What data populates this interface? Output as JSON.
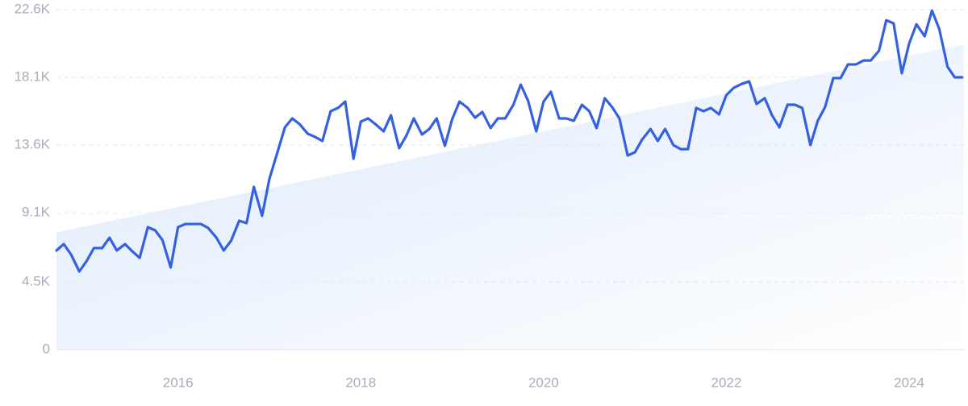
{
  "chart_data": {
    "type": "line",
    "x": [
      2014.67,
      2014.75,
      2014.83,
      2014.92,
      2015,
      2015.08,
      2015.17,
      2015.25,
      2015.33,
      2015.42,
      2015.5,
      2015.58,
      2015.67,
      2015.75,
      2015.83,
      2015.92,
      2016,
      2016.08,
      2016.17,
      2016.25,
      2016.33,
      2016.42,
      2016.5,
      2016.58,
      2016.67,
      2016.75,
      2016.83,
      2016.92,
      2017,
      2017.08,
      2017.17,
      2017.25,
      2017.33,
      2017.42,
      2017.5,
      2017.58,
      2017.67,
      2017.75,
      2017.83,
      2017.92,
      2018,
      2018.08,
      2018.17,
      2018.25,
      2018.33,
      2018.42,
      2018.5,
      2018.58,
      2018.67,
      2018.75,
      2018.83,
      2018.92,
      2019,
      2019.08,
      2019.17,
      2019.25,
      2019.33,
      2019.42,
      2019.5,
      2019.58,
      2019.67,
      2019.75,
      2019.83,
      2019.92,
      2020,
      2020.08,
      2020.17,
      2020.25,
      2020.33,
      2020.42,
      2020.5,
      2020.58,
      2020.67,
      2020.75,
      2020.83,
      2020.92,
      2021,
      2021.08,
      2021.17,
      2021.25,
      2021.33,
      2021.42,
      2021.5,
      2021.58,
      2021.67,
      2021.75,
      2021.83,
      2021.92,
      2022,
      2022.08,
      2022.17,
      2022.25,
      2022.33,
      2022.42,
      2022.5,
      2022.58,
      2022.67,
      2022.75,
      2022.83,
      2022.92,
      2023,
      2023.08,
      2023.17,
      2023.25,
      2023.33,
      2023.42,
      2023.5,
      2023.58,
      2023.67,
      2023.75,
      2023.83,
      2023.92,
      2024,
      2024.08,
      2024.17,
      2024.25,
      2024.33,
      2024.42,
      2024.5,
      2024.58
    ],
    "series": [
      {
        "color": "#3560e0",
        "values": [
          6590,
          7015,
          6320,
          5195,
          5890,
          6750,
          6750,
          7440,
          6590,
          7015,
          6530,
          6100,
          8140,
          7925,
          7280,
          5460,
          8140,
          8350,
          8350,
          8350,
          8085,
          7440,
          6590,
          7230,
          8570,
          8410,
          10820,
          8890,
          11350,
          12960,
          14780,
          15370,
          14990,
          14350,
          14140,
          13870,
          15850,
          16065,
          16490,
          12690,
          15160,
          15370,
          14940,
          14510,
          15580,
          13390,
          14240,
          15370,
          14300,
          14670,
          15370,
          13550,
          15320,
          16490,
          16065,
          15420,
          15800,
          14730,
          15370,
          15370,
          16280,
          17620,
          16550,
          14510,
          16490,
          17140,
          15370,
          15370,
          15210,
          16280,
          15850,
          14730,
          16710,
          16120,
          15370,
          12905,
          13120,
          13980,
          14670,
          13870,
          14670,
          13600,
          13330,
          13330,
          16065,
          15850,
          16065,
          15640,
          16920,
          17400,
          17670,
          17830,
          16330,
          16710,
          15580,
          14780,
          16280,
          16280,
          16065,
          13600,
          15210,
          16120,
          18050,
          18050,
          18960,
          18960,
          19220,
          19220,
          19870,
          21900,
          21690,
          18370,
          20350,
          21630,
          20830,
          22540,
          21310,
          18800,
          18100,
          18100
        ]
      }
    ],
    "trend": [
      7800,
      20300
    ],
    "trend_color": "#dce9fb",
    "xlim": [
      2014.67,
      2024.6
    ],
    "xticks": [
      2016,
      2018,
      2020,
      2022,
      2024
    ],
    "ylim": [
      0,
      22600
    ],
    "yticks": [
      0,
      {
        "value": 4500,
        "label": "4.5K"
      },
      {
        "value": 9100,
        "label": "9.1K"
      },
      {
        "value": 13600,
        "label": "13.6K"
      },
      {
        "value": 18100,
        "label": "18.1K"
      },
      {
        "value": 22600,
        "label": "22.6K"
      }
    ],
    "grid": true
  }
}
